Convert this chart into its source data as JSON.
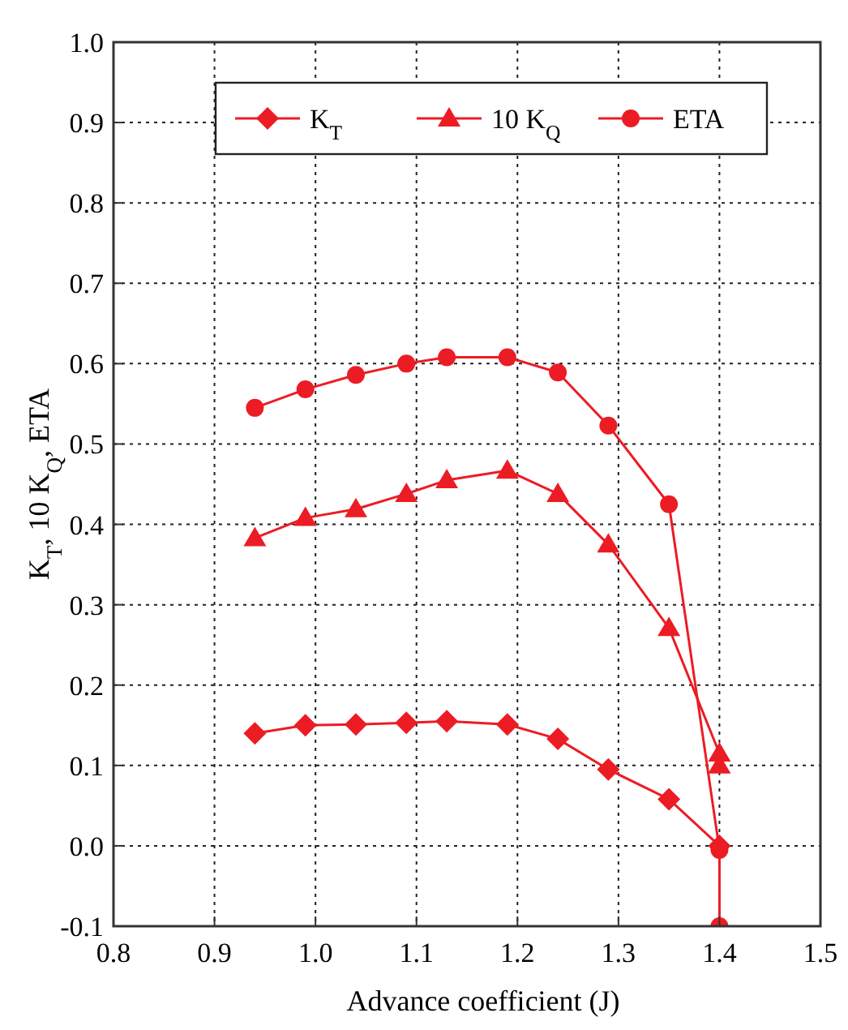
{
  "chart_data": {
    "type": "line",
    "xlabel": "Advance coefficient (J)",
    "ylabel": "K$_{T}$, 10 K$_{Q}$, ETA",
    "xlim": [
      0.8,
      1.5
    ],
    "xticks": [
      {
        "value": 0.8,
        "label": "0.8"
      },
      {
        "value": 0.9,
        "label": "0.9"
      },
      {
        "value": 1.0,
        "label": "1.0"
      },
      {
        "value": 1.1,
        "label": "1.1"
      },
      {
        "value": 1.2,
        "label": "1.2"
      },
      {
        "value": 1.3,
        "label": "1.3"
      },
      {
        "value": 1.4,
        "label": "1.4"
      },
      {
        "value": 1.5,
        "label": "1.5"
      }
    ],
    "ylim": [
      -0.1,
      1.0
    ],
    "yticks": [
      {
        "value": -0.1,
        "label": "-0.1"
      },
      {
        "value": 0.0,
        "label": "0.0"
      },
      {
        "value": 0.1,
        "label": "0.1"
      },
      {
        "value": 0.2,
        "label": "0.2"
      },
      {
        "value": 0.3,
        "label": "0.3"
      },
      {
        "value": 0.4,
        "label": "0.4"
      },
      {
        "value": 0.5,
        "label": "0.5"
      },
      {
        "value": 0.6,
        "label": "0.6"
      },
      {
        "value": 0.7,
        "label": "0.7"
      },
      {
        "value": 0.8,
        "label": "0.8"
      },
      {
        "value": 0.9,
        "label": "0.9"
      },
      {
        "value": 1.0,
        "label": "1.0"
      }
    ],
    "grid": true,
    "legend": "top",
    "line_style": "solid",
    "series": [
      {
        "name": "K$_{T}$",
        "color": "#ec1c24",
        "marker": "diamond",
        "x": [
          0.94,
          0.99,
          1.04,
          1.09,
          1.13,
          1.19,
          1.24,
          1.29,
          1.35,
          1.4
        ],
        "values": [
          0.14,
          0.15,
          0.151,
          0.153,
          0.155,
          0.151,
          0.133,
          0.095,
          0.058,
          0.0
        ]
      },
      {
        "name": "10 K$_{Q}$",
        "color": "#ec1c24",
        "marker": "triangle",
        "x": [
          0.94,
          0.99,
          1.04,
          1.09,
          1.13,
          1.19,
          1.24,
          1.29,
          1.35,
          1.4,
          1.4
        ],
        "values": [
          0.383,
          0.408,
          0.419,
          0.438,
          0.455,
          0.467,
          0.438,
          0.375,
          0.271,
          0.115,
          0.1
        ]
      },
      {
        "name": "ETA",
        "color": "#ec1c24",
        "marker": "circle",
        "x": [
          0.94,
          0.99,
          1.04,
          1.09,
          1.13,
          1.19,
          1.24,
          1.29,
          1.35,
          1.4,
          1.4
        ],
        "values": [
          0.545,
          0.568,
          0.586,
          0.6,
          0.608,
          0.608,
          0.589,
          0.523,
          0.425,
          -0.005,
          -0.1
        ]
      }
    ]
  }
}
